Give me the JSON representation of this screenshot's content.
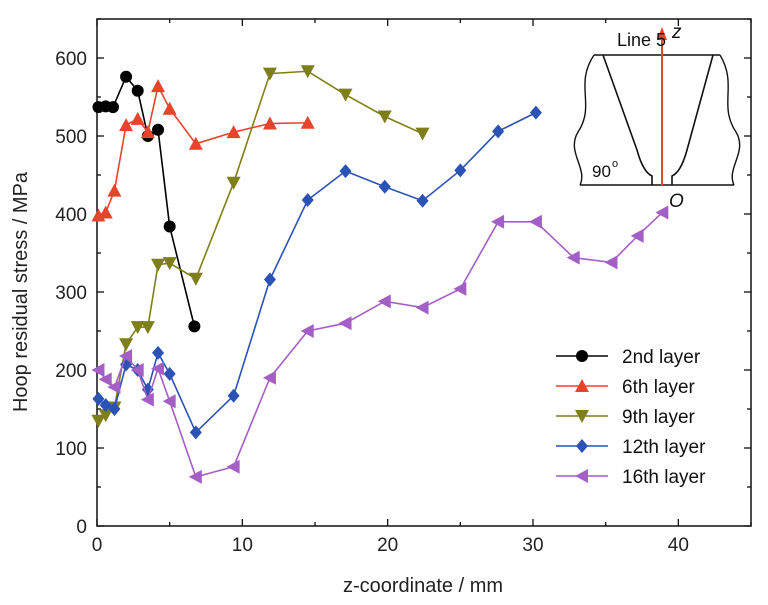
{
  "chart_data": {
    "type": "line",
    "xlabel": "z-coordinate / mm",
    "ylabel": "Hoop residual stress / MPa",
    "xlim": [
      0,
      45
    ],
    "ylim": [
      0,
      650
    ],
    "xticks": [
      0,
      10,
      20,
      30,
      40
    ],
    "yticks": [
      0,
      100,
      200,
      300,
      400,
      500,
      600
    ],
    "grid": false,
    "legend_position": "lower-right",
    "series": [
      {
        "name": "2nd layer",
        "color": "#000000",
        "marker": "circle",
        "x": [
          0.1,
          0.6,
          1.1,
          2.0,
          2.8,
          3.5,
          4.2,
          5.0,
          6.7
        ],
        "y": [
          537,
          538,
          537,
          576,
          558,
          500,
          508,
          384,
          256
        ]
      },
      {
        "name": "6th layer",
        "color": "#e8442c",
        "marker": "triangle-up",
        "x": [
          0.1,
          0.6,
          1.2,
          2.0,
          2.8,
          3.5,
          4.2,
          5.0,
          6.8,
          9.4,
          11.9,
          14.5
        ],
        "y": [
          398,
          402,
          430,
          514,
          522,
          505,
          564,
          535,
          490,
          505,
          516,
          517
        ]
      },
      {
        "name": "9th layer",
        "color": "#7f7f1a",
        "marker": "triangle-down",
        "x": [
          0.1,
          0.6,
          1.2,
          2.0,
          2.8,
          3.5,
          4.2,
          5.0,
          6.8,
          9.4,
          11.9,
          14.5,
          17.1,
          19.8,
          22.4
        ],
        "y": [
          135,
          142,
          152,
          233,
          255,
          255,
          335,
          337,
          317,
          440,
          580,
          583,
          553,
          525,
          503
        ]
      },
      {
        "name": "12th layer",
        "color": "#2b52b5",
        "marker": "diamond",
        "x": [
          0.1,
          0.6,
          1.2,
          2.0,
          2.8,
          3.5,
          4.2,
          5.0,
          6.8,
          9.4,
          11.9,
          14.5,
          17.1,
          19.8,
          22.4,
          25.0,
          27.6,
          30.2
        ],
        "y": [
          163,
          155,
          150,
          207,
          200,
          175,
          222,
          195,
          120,
          167,
          316,
          418,
          455,
          435,
          417,
          456,
          506,
          530
        ]
      },
      {
        "name": "16th layer",
        "color": "#a45fc6",
        "marker": "triangle-left",
        "x": [
          0.1,
          0.6,
          1.2,
          2.0,
          2.8,
          3.5,
          4.2,
          5.0,
          6.8,
          9.4,
          11.9,
          14.5,
          17.1,
          19.8,
          22.4,
          25.0,
          27.6,
          30.2,
          32.8,
          35.4,
          37.2,
          38.9
        ],
        "y": [
          200,
          188,
          178,
          218,
          200,
          162,
          202,
          160,
          63,
          76,
          190,
          250,
          260,
          288,
          280,
          304,
          390,
          390,
          344,
          338,
          372,
          402
        ]
      }
    ],
    "inset": {
      "label_top": "Line 5",
      "axis_label": "z",
      "angle_label": "90",
      "angle_unit": "o",
      "origin_label": "O",
      "arrow_color": "#e8442c"
    }
  }
}
